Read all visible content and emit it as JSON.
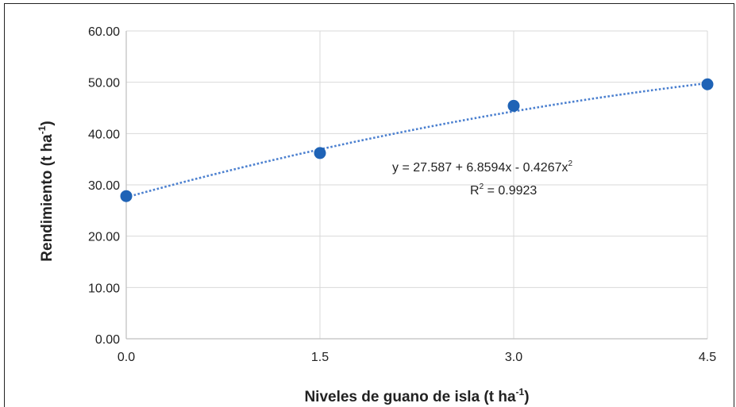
{
  "chart_data": {
    "type": "scatter",
    "title": "",
    "xlabel": "Niveles de guano de isla (t ha",
    "xlabel_sup": "-1",
    "xlabel_end": ")",
    "ylabel": "Rendimiento  (t ha",
    "ylabel_sup": "-1",
    "ylabel_end": ")",
    "x": [
      0.0,
      1.5,
      3.0,
      4.5
    ],
    "x_tick_labels": [
      "0.0",
      "1.5",
      "3.0",
      "4.5"
    ],
    "xlim": [
      0,
      4.5
    ],
    "y_ticks": [
      0,
      10,
      20,
      30,
      40,
      50,
      60
    ],
    "y_tick_labels": [
      "0.00",
      "10.00",
      "20.00",
      "30.00",
      "40.00",
      "50.00",
      "60.00"
    ],
    "ylim": [
      0,
      60
    ],
    "series": [
      {
        "values": [
          27.8,
          36.2,
          45.4,
          49.6
        ],
        "color": "#1f63b6"
      }
    ],
    "trendline": {
      "type": "polynomial",
      "coefficients": [
        27.587,
        6.8594,
        -0.4267
      ],
      "style": "dotted",
      "color": "#4a7fcf"
    },
    "equation_main": "y = 27.587 + 6.8594x - 0.4267x",
    "equation_sup": "2",
    "r2_main": "R",
    "r2_sup": "2",
    "r2_rest": " = 0.9923",
    "grid": true,
    "grid_color": "#d9d9d9"
  }
}
